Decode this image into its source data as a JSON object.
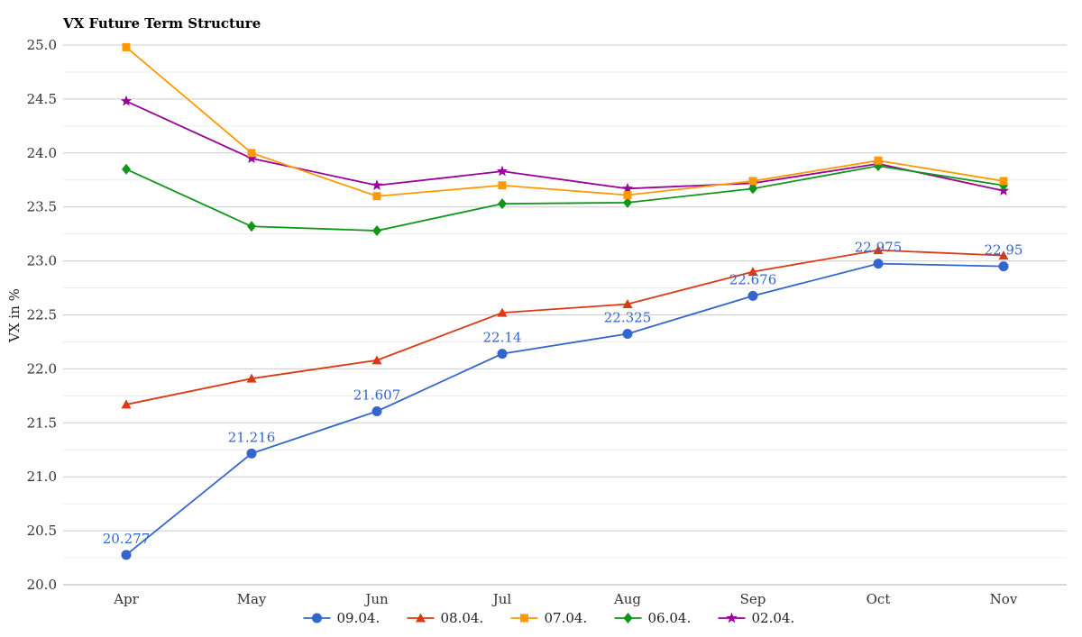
{
  "chart_data": {
    "type": "line",
    "title": "VX Future Term Structure",
    "xlabel": "",
    "ylabel": "VX in %",
    "ylim": [
      20.0,
      25.0
    ],
    "yticks": [
      "20.0",
      "20.5",
      "21.0",
      "21.5",
      "22.0",
      "22.5",
      "23.0",
      "23.5",
      "24.0",
      "24.5",
      "25.0"
    ],
    "categories": [
      "Apr",
      "May",
      "Jun",
      "Jul",
      "Aug",
      "Sep",
      "Oct",
      "Nov"
    ],
    "grid": true,
    "legend_position": "bottom",
    "series": [
      {
        "name": "09.04.",
        "color": "#3366cc",
        "marker": "circle",
        "values": [
          20.277,
          21.216,
          21.607,
          22.14,
          22.325,
          22.676,
          22.975,
          22.95
        ],
        "data_labels": [
          "20.277",
          "21.216",
          "21.607",
          "22.14",
          "22.325",
          "22.676",
          "22.975",
          "22.95"
        ]
      },
      {
        "name": "08.04.",
        "color": "#dc3912",
        "marker": "triangle",
        "values": [
          21.67,
          21.91,
          22.08,
          22.52,
          22.6,
          22.9,
          23.1,
          23.05
        ]
      },
      {
        "name": "07.04.",
        "color": "#ff9900",
        "marker": "square",
        "values": [
          24.98,
          24.0,
          23.6,
          23.7,
          23.61,
          23.74,
          23.93,
          23.74
        ]
      },
      {
        "name": "06.04.",
        "color": "#109618",
        "marker": "diamond",
        "values": [
          23.85,
          23.32,
          23.28,
          23.53,
          23.54,
          23.67,
          23.88,
          23.7
        ]
      },
      {
        "name": "02.04.",
        "color": "#990099",
        "marker": "star",
        "values": [
          24.48,
          23.95,
          23.7,
          23.83,
          23.67,
          23.72,
          23.9,
          23.65
        ]
      }
    ]
  }
}
